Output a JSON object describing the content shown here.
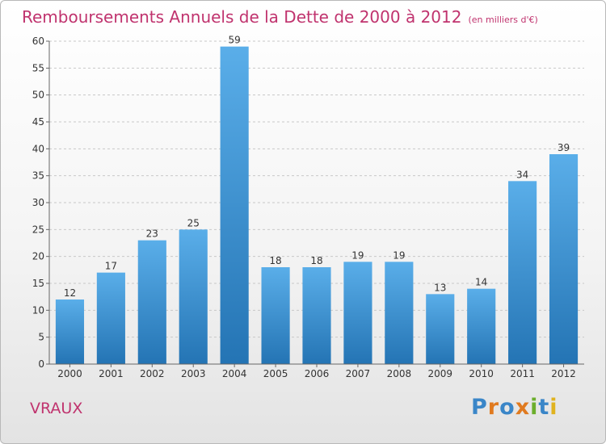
{
  "header": {
    "title": "Remboursements Annuels de la Dette de 2000 à 2012",
    "subtitle": "(en milliers d'€)"
  },
  "footer": {
    "commune": "VRAUX",
    "logo_text": "Proxiti"
  },
  "colors": {
    "title": "#c0336e",
    "bar_top": "#5aaee9",
    "bar_bottom": "#2474b4",
    "logo_letters": [
      "#3a86c8",
      "#e07a1f",
      "#3a86c8",
      "#e07a1f",
      "#6cae2c",
      "#3a86c8",
      "#e0b31f"
    ]
  },
  "chart_data": {
    "type": "bar",
    "categories": [
      "2000",
      "2001",
      "2002",
      "2003",
      "2004",
      "2005",
      "2006",
      "2007",
      "2008",
      "2009",
      "2010",
      "2011",
      "2012"
    ],
    "values": [
      12,
      17,
      23,
      25,
      59,
      18,
      18,
      19,
      19,
      13,
      14,
      34,
      39
    ],
    "ylim": [
      0,
      60
    ],
    "yticks": [
      0,
      5,
      10,
      15,
      20,
      25,
      30,
      35,
      40,
      45,
      50,
      55,
      60
    ],
    "grid": "horizontal dashed",
    "legend": "none"
  }
}
